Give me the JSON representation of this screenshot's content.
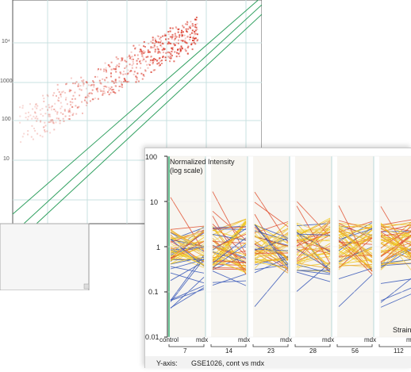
{
  "scatter_plot": {
    "ytick_labels": [
      "10⁴",
      "10³",
      "1000",
      "100",
      "10"
    ],
    "point_color": "#d83020",
    "diagonal_color": "#30a060",
    "grid_color": "#c8e0e0"
  },
  "parallel_plot": {
    "ylabel_line1": "Normalized Intensity",
    "ylabel_line2": "(log scale)",
    "ytick_labels": [
      "100",
      "10",
      "1",
      "0.1",
      "0.01"
    ],
    "xgroup_control": "control",
    "xgroup_mdx": "mdx",
    "strain_label": "Strain",
    "time_labels": [
      "7",
      "14",
      "23",
      "28",
      "56",
      "112"
    ],
    "footer_label": "Y-axis:",
    "footer_value": "GSE1026, cont vs mdx",
    "series_colors": [
      "#e8a020",
      "#f0c818",
      "#3858b8",
      "#e05030",
      "#f0d060"
    ]
  }
}
